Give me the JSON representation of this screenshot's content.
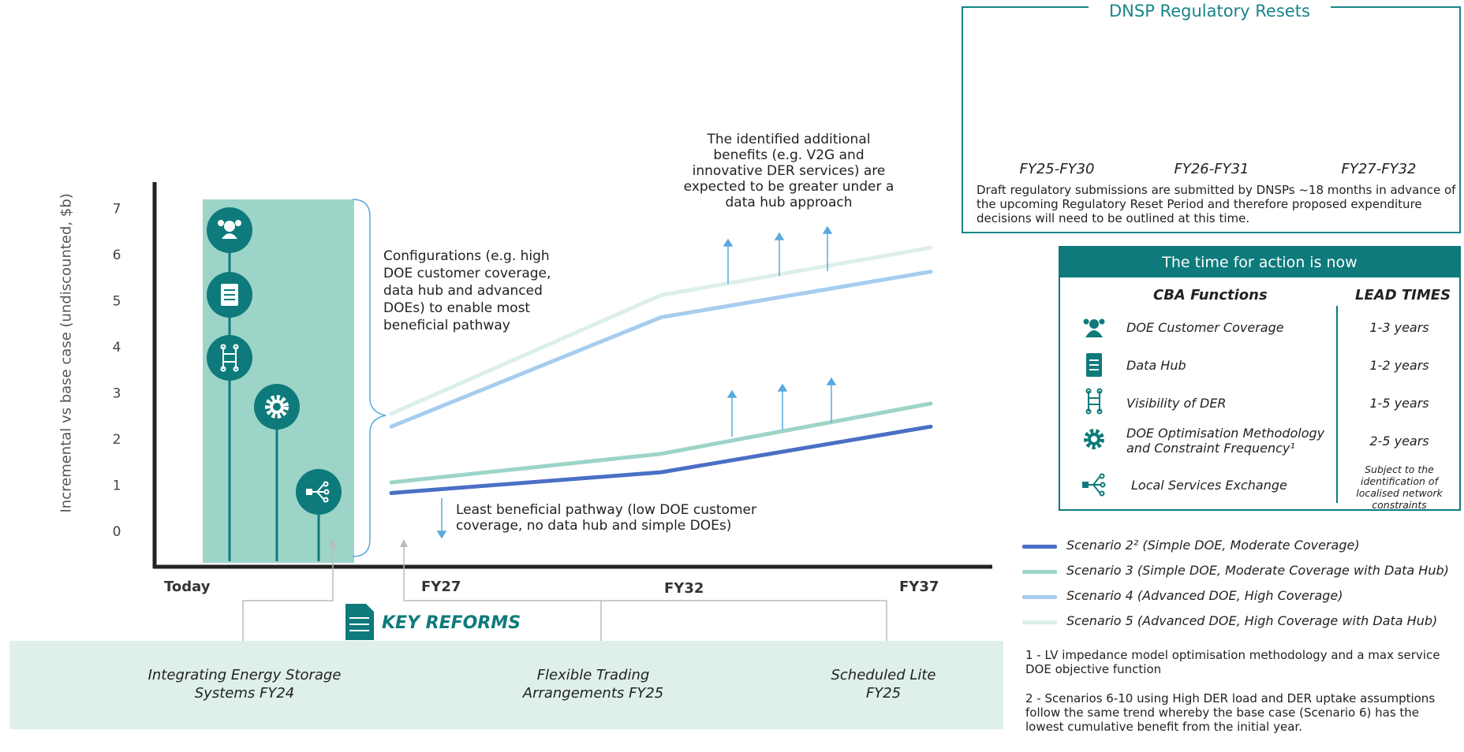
{
  "chart_data": {
    "type": "line",
    "ylabel": "Incremental vs base case (undiscounted, $b)",
    "y_ticks": [
      "0",
      "1",
      "2",
      "3",
      "4",
      "5",
      "6",
      "7"
    ],
    "ylim": [
      -0.75,
      7.6
    ],
    "x_ticks": [
      "Today",
      "FY27",
      "FY32",
      "FY37"
    ],
    "series": [
      {
        "name": "Scenario 2² (Simple DOE, Moderate Coverage)",
        "color": "#4a6fc4",
        "x": [
          2027,
          2032,
          2037
        ],
        "values": [
          0.83,
          1.28,
          2.27
        ]
      },
      {
        "name": "Scenario 3 (Simple DOE, Moderate Coverage with Data Hub)",
        "color": "#9dd4c8",
        "x": [
          2027,
          2032,
          2037
        ],
        "values": [
          1.06,
          1.68,
          2.77
        ]
      },
      {
        "name": "Scenario 4 (Advanced DOE, High Coverage)",
        "color": "#a6cdee",
        "x": [
          2027,
          2032,
          2037
        ],
        "values": [
          2.27,
          4.64,
          5.63
        ]
      },
      {
        "name": "Scenario 5 (Advanced DOE, High Coverage with Data Hub)",
        "color": "#dcefea",
        "x": [
          2027,
          2032,
          2037
        ],
        "values": [
          2.55,
          5.12,
          6.15
        ]
      }
    ]
  },
  "annotations": {
    "additional_benefits": [
      "The identified additional",
      "benefits (e.g. V2G and",
      "innovative DER services) are",
      "expected to be greater under a",
      "data hub approach"
    ],
    "configurations": [
      "Configurations (e.g. high",
      "DOE customer coverage,",
      "data hub and advanced",
      "DOEs) to enable most",
      "beneficial pathway"
    ],
    "least_beneficial": [
      "Least beneficial pathway (low DOE customer",
      "coverage, no data hub and simple DOEs)"
    ]
  },
  "key_reforms": {
    "title": "KEY REFORMS",
    "items": [
      {
        "line1": "Integrating Energy Storage",
        "line2": "Systems FY24"
      },
      {
        "line1": "Flexible Trading",
        "line2": "Arrangements FY25"
      },
      {
        "line1": "Scheduled Lite",
        "line2": "FY25"
      }
    ]
  },
  "dnsp": {
    "title": "DNSP Regulatory Resets",
    "periods": [
      "FY25-FY30",
      "FY26-FY31",
      "FY27-FY32"
    ],
    "note": "Draft regulatory submissions are submitted by DNSPs ~18 months in advance of the upcoming Regulatory Reset Period and therefore proposed expenditure decisions will need to be outlined at this time."
  },
  "action": {
    "title": "The time for action is now",
    "col_functions": "CBA Functions",
    "col_lead": "LEAD TIMES",
    "rows": [
      {
        "icon": "customer-coverage-icon",
        "label": "DOE Customer Coverage",
        "lead": "1-3 years"
      },
      {
        "icon": "data-hub-icon",
        "label": "Data Hub",
        "lead": "1-2 years"
      },
      {
        "icon": "visibility-der-icon",
        "label": "Visibility of DER",
        "lead": "1-5 years"
      },
      {
        "icon": "gear-icon",
        "label": "DOE Optimisation Methodology and Constraint Frequency¹",
        "lead": "2-5 years"
      },
      {
        "icon": "local-services-exchange-icon",
        "label": "Local Services Exchange",
        "lead": "Subject to the identification of localised network constraints"
      }
    ]
  },
  "footnotes": [
    "1 - LV impedance model optimisation methodology and a max service DOE objective function",
    "2 - Scenarios 6-10 using High DER load and DER uptake assumptions follow the same trend whereby the base case (Scenario 6) has the lowest cumulative benefit from the initial year."
  ],
  "colors": {
    "teal_dark": "#0e7a7b",
    "teal_panel": "#9dd4c8",
    "band": "#dff0ea",
    "arrow": "#5aa9e0"
  }
}
